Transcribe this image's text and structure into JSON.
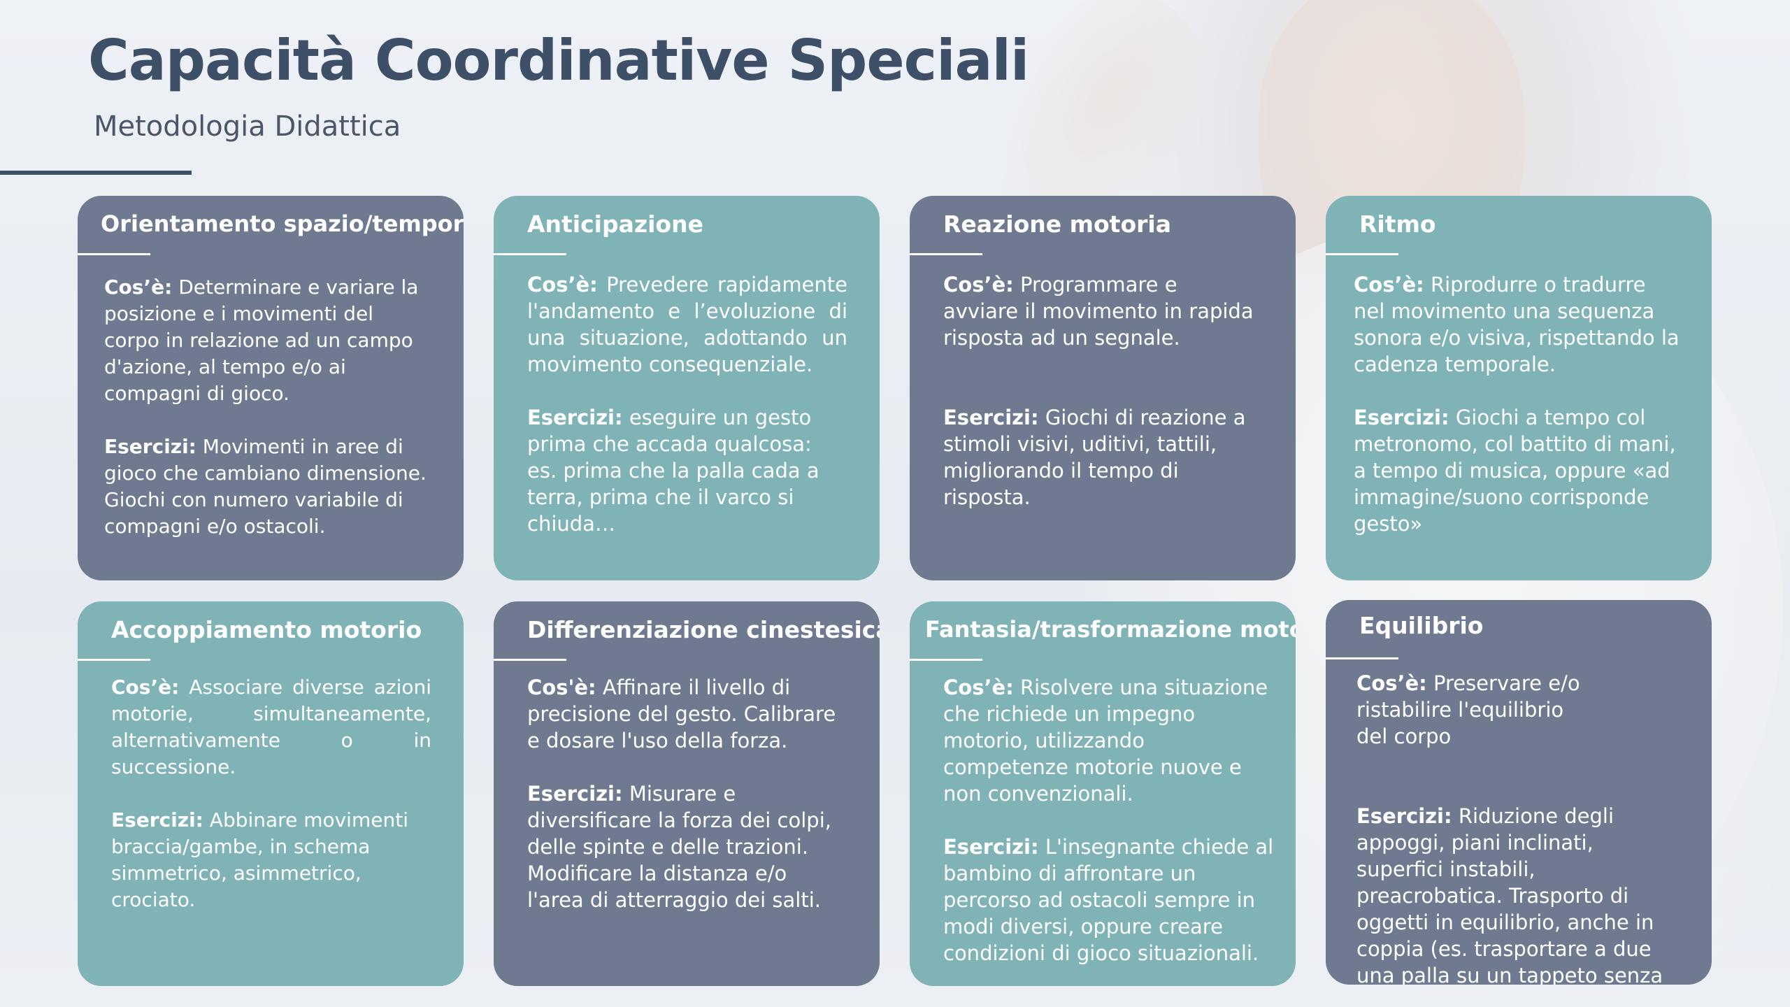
{
  "header": {
    "title": "Capacità Coordinative Speciali",
    "subtitle": "Metodologia Didattica"
  },
  "labels": {
    "cos": "Cos’è:",
    "cos_alt": "Cos'è:",
    "esercizi": "Esercizi:"
  },
  "cards": [
    {
      "title": "Orientamento spazio/temporale",
      "cos": "Determinare e variare la posizione e i movimenti del corpo in relazione ad un campo d'azione, al tempo e/o ai compagni di gioco.",
      "esercizi_1": "Movimenti in aree di gioco che cambiano dimensione.",
      "esercizi_2": "Giochi con numero variabile di compagni e/o ostacoli."
    },
    {
      "title": "Anticipazione",
      "cos": "Prevedere rapidamente l'andamento e l’evoluzione di una situazione, adottando un movimento consequenziale.",
      "esercizi": "eseguire un gesto prima che accada qualcosa: es. prima che la palla cada a terra, prima che il varco si chiuda…"
    },
    {
      "title": "Reazione motoria",
      "cos": "Programmare e avviare il movimento in rapida risposta ad un segnale.",
      "esercizi": "Giochi di reazione a stimoli visivi, uditivi, tattili, migliorando il tempo di risposta."
    },
    {
      "title": "Ritmo",
      "cos": "Riprodurre o tradurre nel movimento una sequenza sonora e/o visiva, rispettando la cadenza temporale.",
      "esercizi": "Giochi a tempo col metronomo, col battito di mani, a tempo di musica, oppure «ad immagine/suono corrisponde gesto»"
    },
    {
      "title": "Accoppiamento motorio",
      "cos": "Associare diverse azioni motorie, simultaneamente, alternativamente o in successione.",
      "esercizi": "Abbinare movimenti braccia/gambe, in schema simmetrico, asimmetrico, crociato."
    },
    {
      "title": "Differenziazione cinestesica",
      "cos": "Affinare il livello di precisione del gesto. Calibrare e dosare l'uso della forza.",
      "esercizi": "Misurare e diversificare la forza dei colpi, delle spinte e delle trazioni. Modificare la distanza e/o l'area di atterraggio dei salti."
    },
    {
      "title": "Fantasia/trasformazione motoria",
      "cos": "Risolvere una situazione che richiede un impegno motorio, utilizzando competenze motorie nuove e non convenzionali.",
      "esercizi": "L'insegnante chiede al bambino di affrontare un percorso ad ostacoli sempre in modi diversi, oppure creare condizioni di gioco situazionali."
    },
    {
      "title": "Equilibrio",
      "cos": "Preservare e/o ristabilire l'equilibrio del corpo",
      "esercizi": "Riduzione degli appoggi, piani inclinati, superfici instabili, preacrobatica. Trasporto di oggetti in equilibrio, anche in coppia (es. trasportare a due una palla su un tappeto senza farla cadere )"
    }
  ],
  "colors": {
    "slate": "#6f7a90",
    "teal": "#7fb3b5",
    "title": "#3e4f68"
  }
}
